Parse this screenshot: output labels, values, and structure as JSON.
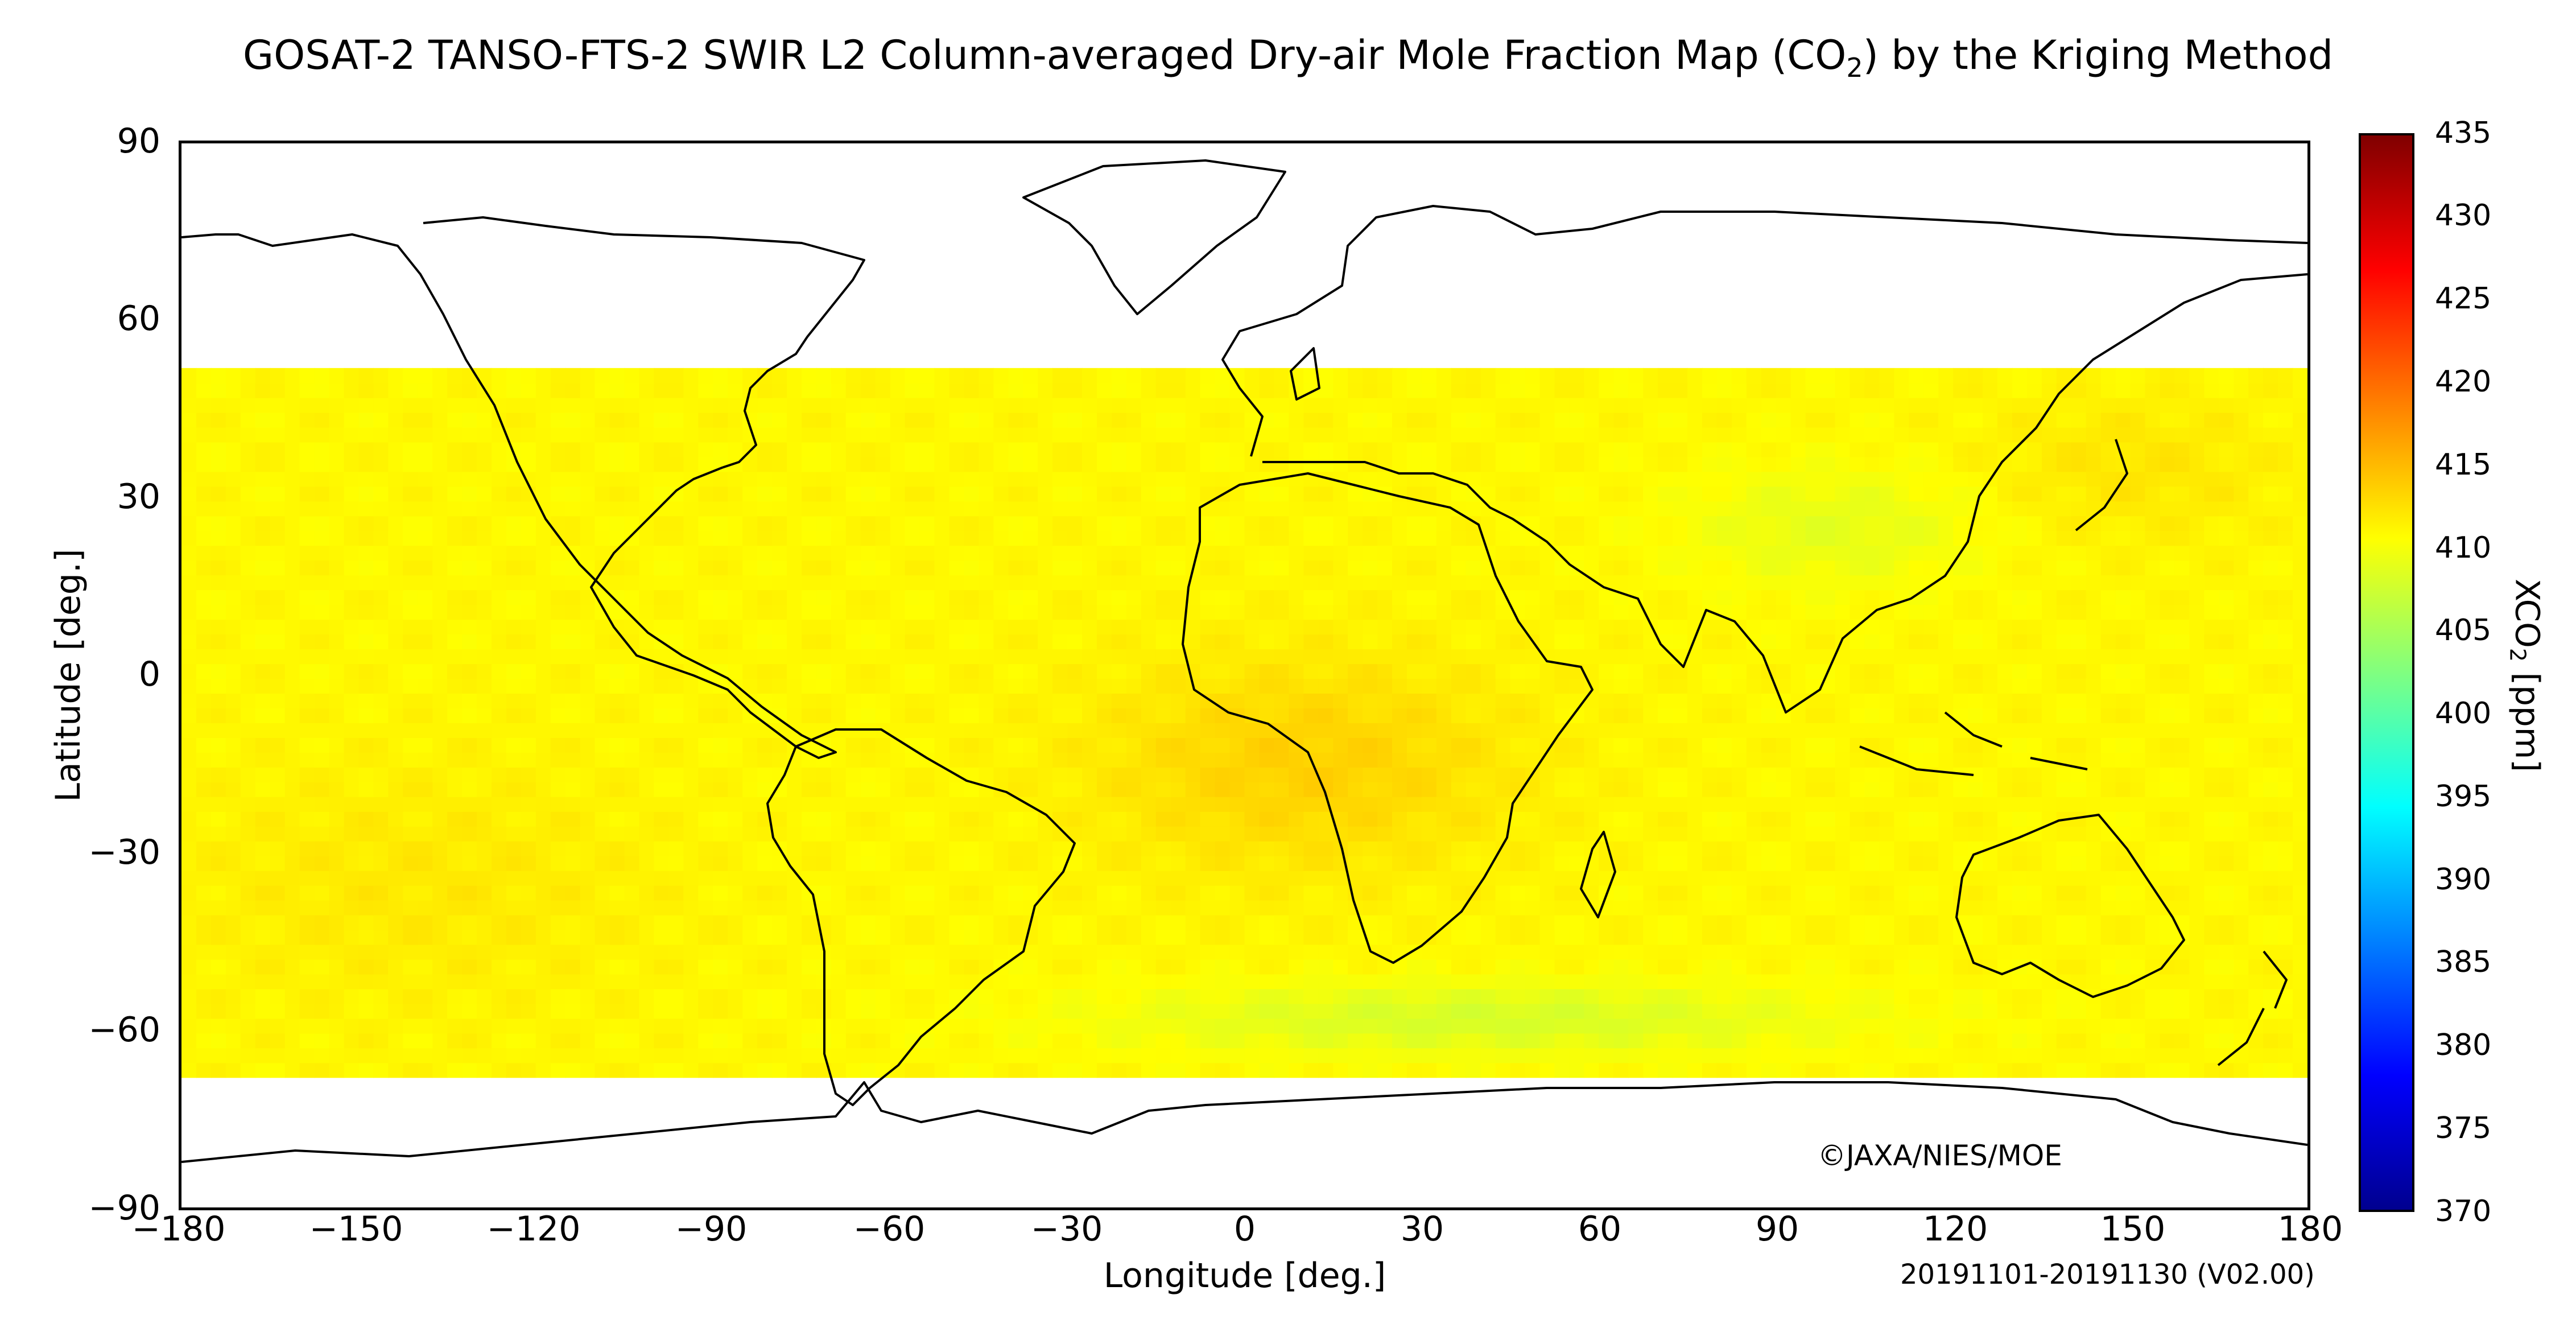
{
  "title_main": "GOSAT-2 TANSO-FTS-2 SWIR L2 Column-averaged Dry-air Mole Fraction Map (CO",
  "title_sub": "2",
  "title_end": ") by the Kriging Method",
  "xlabel": "Longitude [deg.]",
  "ylabel": "Latitude [deg.]",
  "x_ticks": [
    "−180",
    "−150",
    "−120",
    "−90",
    "−60",
    "−30",
    "0",
    "30",
    "60",
    "90",
    "120",
    "150",
    "180"
  ],
  "y_ticks": [
    "90",
    "60",
    "30",
    "0",
    "−30",
    "−60",
    "−90"
  ],
  "colorbar": {
    "label_main": "XCO",
    "label_sub": "2",
    "label_end": " [ppm]",
    "min": 370,
    "max": 435,
    "ticks": [
      "435",
      "430",
      "425",
      "420",
      "415",
      "410",
      "405",
      "400",
      "395",
      "390",
      "385",
      "380",
      "375",
      "370"
    ],
    "colors": [
      "#00008f",
      "#0000ff",
      "#0080ff",
      "#00ffff",
      "#80ff80",
      "#ffff00",
      "#ff8000",
      "#ff0000",
      "#800000"
    ]
  },
  "copyright": "©JAXA/NIES/MOE",
  "period": "20191101-20191130 (V02.00)",
  "map": {
    "projection": "equirectangular",
    "lon_range": [
      -180,
      180
    ],
    "lat_range": [
      -90,
      90
    ],
    "data_lat_range": [
      -68,
      52
    ],
    "grid_step_deg": 2.5,
    "typical_xco2_ppm": 411,
    "high_region_xco2_ppm": 414,
    "low_region_xco2_ppm": 407,
    "coastline_color": "#000000"
  }
}
